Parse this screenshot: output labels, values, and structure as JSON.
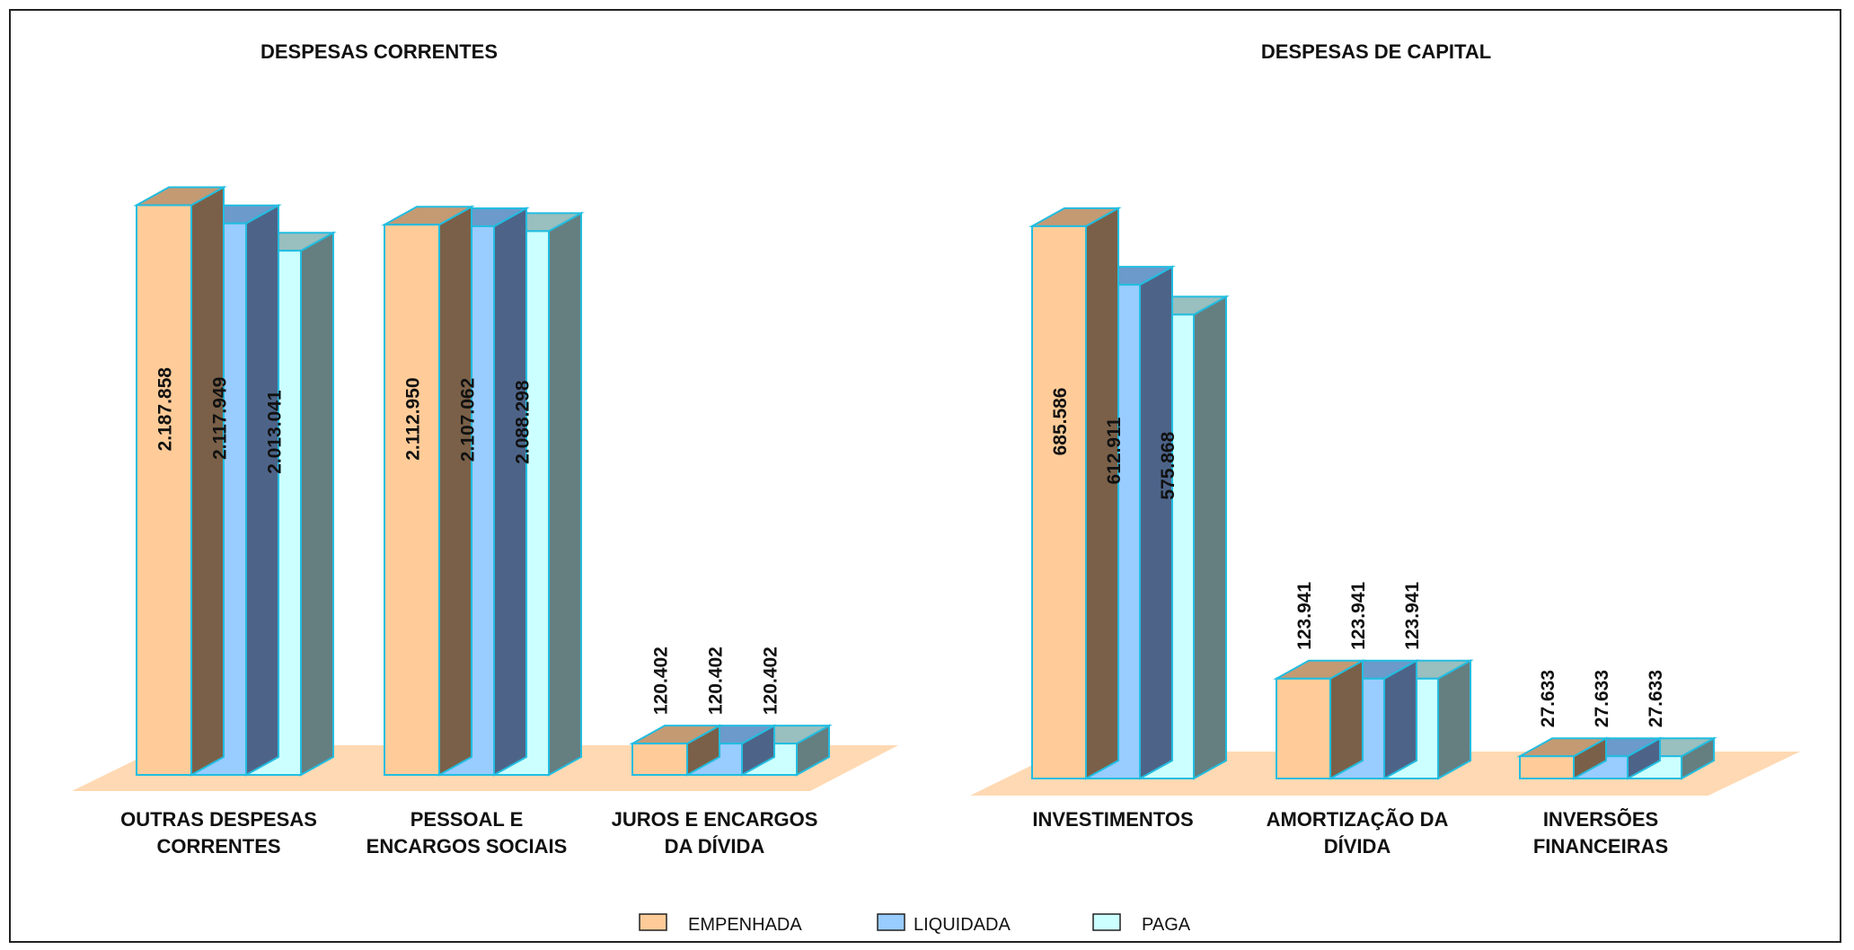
{
  "chart_data": [
    {
      "type": "bar",
      "title": "DESPESAS CORRENTES",
      "categories": [
        "OUTRAS DESPESAS CORRENTES",
        "PESSOAL E ENCARGOS SOCIAIS",
        "JUROS E ENCARGOS DA DÍVIDA"
      ],
      "category_lines": [
        [
          "OUTRAS DESPESAS",
          "CORRENTES"
        ],
        [
          "PESSOAL E",
          "ENCARGOS SOCIAIS"
        ],
        [
          "JUROS E ENCARGOS",
          "DA DÍVIDA"
        ]
      ],
      "series": [
        {
          "name": "EMPENHADA",
          "values": [
            2187858,
            2112950,
            120402
          ],
          "labels": [
            "2.187.858",
            "2.112.950",
            "120.402"
          ]
        },
        {
          "name": "LIQUIDADA",
          "values": [
            2117949,
            2107062,
            120402
          ],
          "labels": [
            "2.117.949",
            "2.107.062",
            "120.402"
          ]
        },
        {
          "name": "PAGA",
          "values": [
            2013041,
            2088298,
            120402
          ],
          "labels": [
            "2.013.041",
            "2.088.298",
            "120.402"
          ]
        }
      ],
      "ylim": [
        0,
        2200000
      ],
      "three_d": true,
      "grid": false
    },
    {
      "type": "bar",
      "title": "DESPESAS DE CAPITAL",
      "categories": [
        "INVESTIMENTOS",
        "AMORTIZAÇÃO DA DÍVIDA",
        "INVERSÕES FINANCEIRAS"
      ],
      "category_lines": [
        [
          "INVESTIMENTOS"
        ],
        [
          "AMORTIZAÇÃO DA",
          "DÍVIDA"
        ],
        [
          "INVERSÕES",
          "FINANCEIRAS"
        ]
      ],
      "series": [
        {
          "name": "EMPENHADA",
          "values": [
            685586,
            123941,
            27633
          ],
          "labels": [
            "685.586",
            "123.941",
            "27.633"
          ]
        },
        {
          "name": "LIQUIDADA",
          "values": [
            612911,
            123941,
            27633
          ],
          "labels": [
            "612.911",
            "123.941",
            "27.633"
          ]
        },
        {
          "name": "PAGA",
          "values": [
            575868,
            123941,
            27633
          ],
          "labels": [
            "575.868",
            "123.941",
            "27.633"
          ]
        }
      ],
      "ylim": [
        0,
        700000
      ],
      "three_d": true,
      "grid": false
    }
  ],
  "legend": {
    "placement": "bottom-center",
    "items": [
      {
        "label": "EMPENHADA",
        "color": "#ffcc99"
      },
      {
        "label": "LIQUIDADA",
        "color": "#99ccff"
      },
      {
        "label": "PAGA",
        "color": "#ccffff"
      }
    ]
  },
  "colors": {
    "empenhada_front": "#ffcc99",
    "empenhada_top": "#c49a73",
    "empenhada_side": "#7a6048",
    "liquidada_front": "#99ccff",
    "liquidada_top": "#6b9acb",
    "liquidada_side": "#4d6488",
    "paga_front": "#ccffff",
    "paga_top": "#99bfbf",
    "paga_side": "#657e80",
    "bar_edge": "#22bde0",
    "floor": "#ffd9b3"
  }
}
